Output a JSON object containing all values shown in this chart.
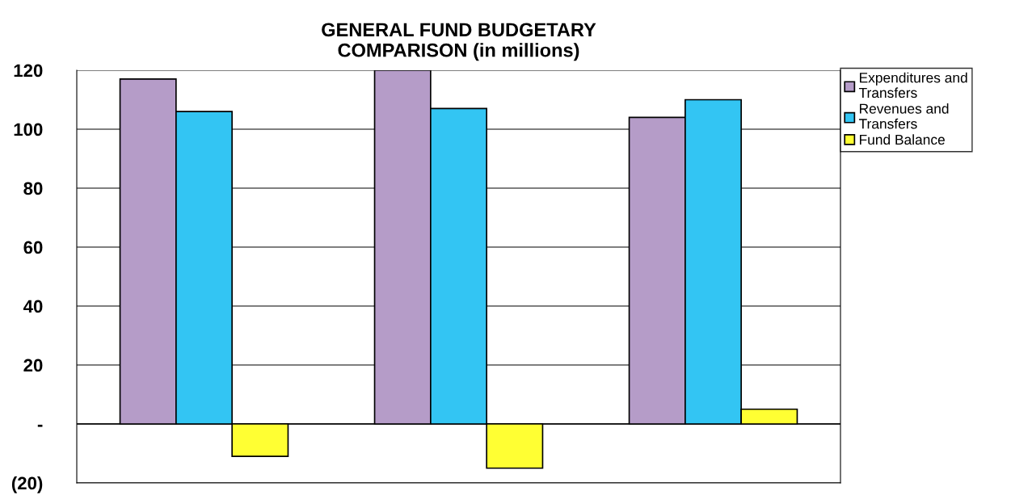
{
  "chart_data": {
    "type": "bar",
    "title": "GENERAL FUND BUDGETARY\nCOMPARISON (in millions)",
    "categories": [
      null,
      null,
      null
    ],
    "series": [
      {
        "name": "Expenditures and\nTransfers",
        "color": "#b59cc8",
        "values": [
          117,
          120,
          104
        ]
      },
      {
        "name": "Revenues and\nTransfers",
        "color": "#33c5f3",
        "values": [
          106,
          107,
          110
        ]
      },
      {
        "name": "Fund Balance",
        "color": "#ffff33",
        "values": [
          -11,
          -15,
          5
        ]
      }
    ],
    "ylim": [
      -20,
      120
    ],
    "yticks": [
      {
        "value": -20,
        "label": "(20)"
      },
      {
        "value": 0,
        "label": "-"
      },
      20,
      40,
      60,
      80,
      100,
      120
    ],
    "grid": "y",
    "legend": "top right"
  }
}
